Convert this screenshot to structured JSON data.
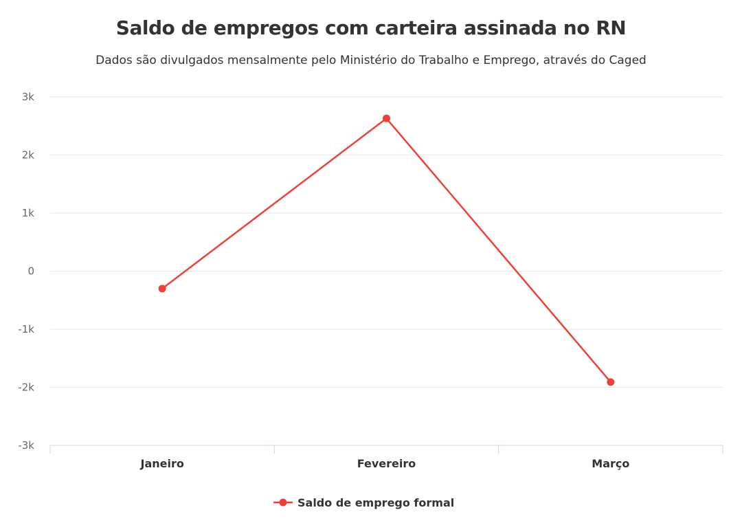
{
  "chart_data": {
    "type": "line",
    "title": "Saldo de empregos com carteira assinada no RN",
    "subtitle": "Dados são divulgados mensalmente pelo Ministério do Trabalho e Emprego, através do Caged",
    "categories": [
      "Janeiro",
      "Fevereiro",
      "Março"
    ],
    "series": [
      {
        "name": "Saldo de emprego formal",
        "values": [
          -300,
          2630,
          -1910
        ],
        "color": "#ee4036"
      }
    ],
    "ylim": [
      -3000,
      3000
    ],
    "yticks": [
      3000,
      2000,
      1000,
      0,
      -1000,
      -2000,
      -3000
    ],
    "ytick_labels": [
      "3k",
      "2k",
      "1k",
      "0",
      "-1k",
      "-2k",
      "-3k"
    ],
    "grid": true,
    "legend": "bottom-center"
  }
}
